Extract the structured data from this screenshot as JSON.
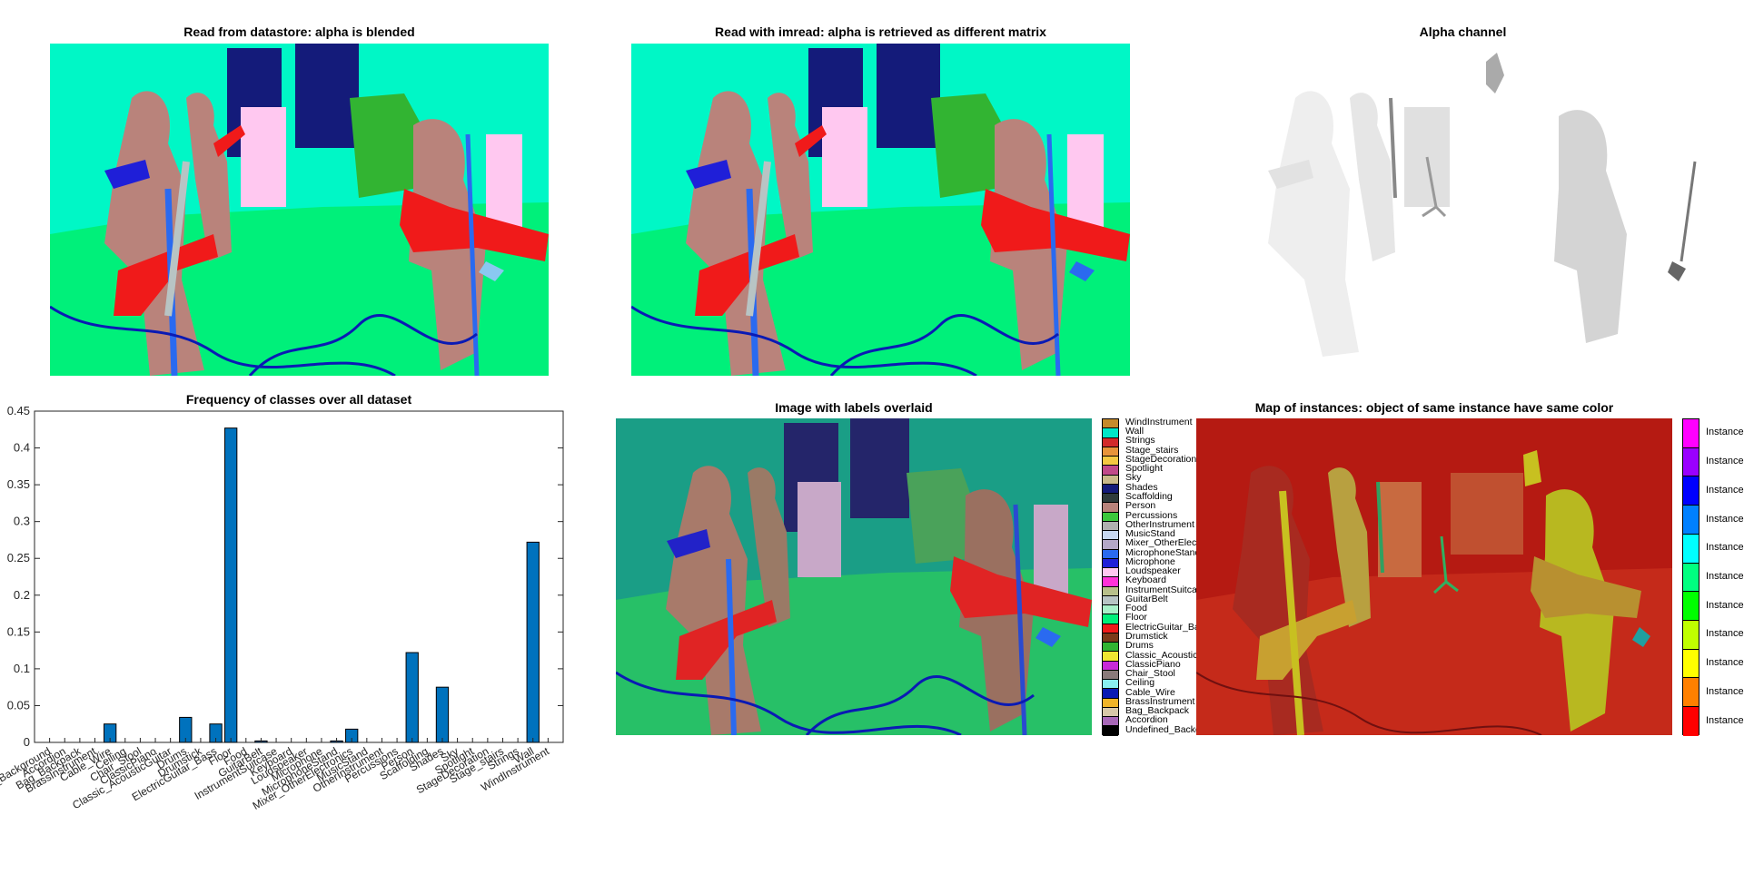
{
  "titles": {
    "datastore": "Read from datastore: alpha is blended",
    "imread": "Read with imread: alpha is retrieved as different matrix",
    "alpha": "Alpha channel",
    "frequency": "Frequency of classes over all dataset",
    "overlay": "Image with labels overlaid",
    "instances": "Map of instances: object of same instance have same color"
  },
  "label_legend": [
    {
      "label": "WindInstrument",
      "color": "#c58a2b"
    },
    {
      "label": "Wall",
      "color": "#00e6c8"
    },
    {
      "label": "Strings",
      "color": "#d22a2a"
    },
    {
      "label": "Stage_stairs",
      "color": "#e8943a"
    },
    {
      "label": "StageDecoration",
      "color": "#f5c842"
    },
    {
      "label": "Spotlight",
      "color": "#c04a8a"
    },
    {
      "label": "Sky",
      "color": "#c9b98a"
    },
    {
      "label": "Shades",
      "color": "#141b7a"
    },
    {
      "label": "Scaffolding",
      "color": "#2f3b3b"
    },
    {
      "label": "Person",
      "color": "#b9837b"
    },
    {
      "label": "Percussions",
      "color": "#3cc83c"
    },
    {
      "label": "OtherInstrument",
      "color": "#b0b0b0"
    },
    {
      "label": "MusicStand",
      "color": "#c8d8f0"
    },
    {
      "label": "Mixer_OtherElectronics",
      "color": "#b4a8c8"
    },
    {
      "label": "MicrophoneStand",
      "color": "#2a6af0"
    },
    {
      "label": "Microphone",
      "color": "#1f1fd8"
    },
    {
      "label": "Loudspeaker",
      "color": "#ffc8f0"
    },
    {
      "label": "Keyboard",
      "color": "#ff32d8"
    },
    {
      "label": "InstrumentSuitcase",
      "color": "#b8c08a"
    },
    {
      "label": "GuitarBelt",
      "color": "#b8c4c4"
    },
    {
      "label": "Food",
      "color": "#a8f0c8"
    },
    {
      "label": "Floor",
      "color": "#00f07a"
    },
    {
      "label": "ElectricGuitar_Bass",
      "color": "#f01a1a"
    },
    {
      "label": "Drumstick",
      "color": "#7a3a1a"
    },
    {
      "label": "Drums",
      "color": "#32b432"
    },
    {
      "label": "Classic_AcousticGuitar",
      "color": "#f0e632"
    },
    {
      "label": "ClassicPiano",
      "color": "#c82ad8"
    },
    {
      "label": "Chair_Stool",
      "color": "#8a7a7a"
    },
    {
      "label": "Ceiling",
      "color": "#8af0f0"
    },
    {
      "label": "Cable_Wire",
      "color": "#0a1ab4"
    },
    {
      "label": "BrassInstrument",
      "color": "#f0b428"
    },
    {
      "label": "Bag_Backpack",
      "color": "#d8c8a8"
    },
    {
      "label": "Accordion",
      "color": "#a868b8"
    },
    {
      "label": "Undefined_Background",
      "color": "#000000"
    }
  ],
  "instance_legend": [
    {
      "label": "Instance",
      "color": "#ff00ff"
    },
    {
      "label": "Instance",
      "color": "#9a00ff"
    },
    {
      "label": "Instance",
      "color": "#0000ff"
    },
    {
      "label": "Instance",
      "color": "#0080ff"
    },
    {
      "label": "Instance",
      "color": "#00ffff"
    },
    {
      "label": "Instance",
      "color": "#00ff80"
    },
    {
      "label": "Instance",
      "color": "#00ff00"
    },
    {
      "label": "Instance",
      "color": "#c0ff00"
    },
    {
      "label": "Instance",
      "color": "#ffff00"
    },
    {
      "label": "Instance",
      "color": "#ff8000"
    },
    {
      "label": "Instance",
      "color": "#ff0000"
    }
  ],
  "chart_data": {
    "type": "bar",
    "title": "Frequency of classes over all dataset",
    "xlabel": "",
    "ylabel": "",
    "ylim": [
      0,
      0.45
    ],
    "yticks": [
      "0",
      "0.05",
      "0.1",
      "0.15",
      "0.2",
      "0.25",
      "0.3",
      "0.35",
      "0.4",
      "0.45"
    ],
    "categories": [
      "Undefined_Background",
      "Accordion",
      "Bag_Backpack",
      "BrassInstrument",
      "Cable_Wire",
      "Ceiling",
      "Chair_Stool",
      "ClassicPiano",
      "Classic_AcousticGuitar",
      "Drums",
      "Drumstick",
      "ElectricGuitar_Bass",
      "Floor",
      "Food",
      "GuitarBelt",
      "InstrumentSuitcase",
      "Keyboard",
      "Loudspeaker",
      "Microphone",
      "MicrophoneStand",
      "Mixer_OtherElectronics",
      "MusicStand",
      "OtherInstrument",
      "Percussions",
      "Person",
      "Scaffolding",
      "Shades",
      "Sky",
      "Spotlight",
      "StageDecoration",
      "Stage_stairs",
      "Strings",
      "Wall",
      "WindInstrument"
    ],
    "values": [
      0,
      0,
      0,
      0,
      0.025,
      0,
      0,
      0,
      0,
      0.034,
      0,
      0.025,
      0.427,
      0,
      0.002,
      0,
      0,
      0,
      0,
      0.002,
      0.018,
      0,
      0,
      0,
      0.122,
      0,
      0.075,
      0,
      0,
      0,
      0,
      0,
      0.272,
      0
    ],
    "bar_color": "#0072bd",
    "grid": false
  }
}
